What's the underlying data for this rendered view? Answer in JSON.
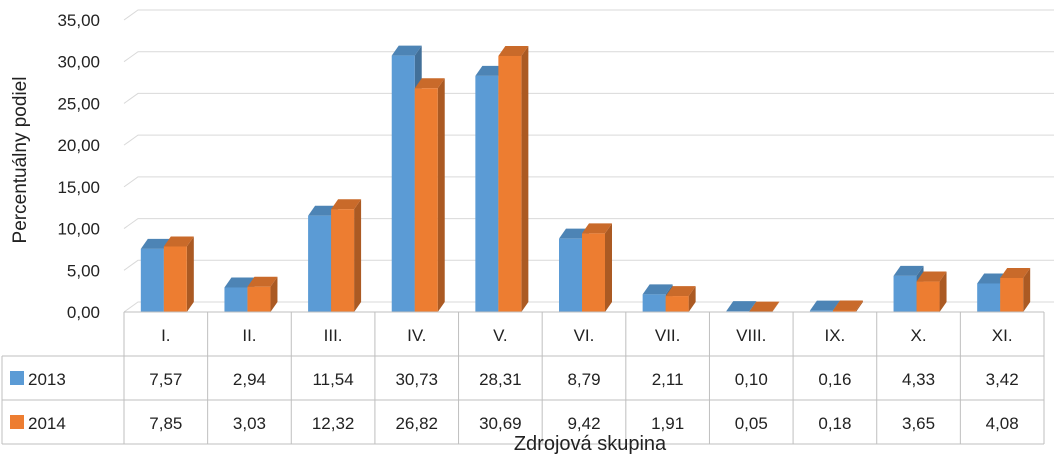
{
  "chart_data": {
    "type": "bar",
    "title": "",
    "xlabel": "Zdrojová skupina",
    "ylabel": "Percentuálny podiel",
    "ylim": [
      0,
      35
    ],
    "y_ticks": [
      "0,00",
      "5,00",
      "10,00",
      "15,00",
      "20,00",
      "25,00",
      "30,00",
      "35,00"
    ],
    "y_tick_values": [
      0,
      5,
      10,
      15,
      20,
      25,
      30,
      35
    ],
    "categories": [
      "I.",
      "II.",
      "III.",
      "IV.",
      "V.",
      "VI.",
      "VII.",
      "VIII.",
      "IX.",
      "X.",
      "XI."
    ],
    "series": [
      {
        "name": "2013",
        "color": "#5b9bd5",
        "values": [
          7.57,
          2.94,
          11.54,
          30.73,
          28.31,
          8.79,
          2.11,
          0.1,
          0.16,
          4.33,
          3.42
        ],
        "labels": [
          "7,57",
          "2,94",
          "11,54",
          "30,73",
          "28,31",
          "8,79",
          "2,11",
          "0,10",
          "0,16",
          "4,33",
          "3,42"
        ]
      },
      {
        "name": "2014",
        "color": "#ed7d31",
        "values": [
          7.85,
          3.03,
          12.32,
          26.82,
          30.69,
          9.42,
          1.91,
          0.05,
          0.18,
          3.65,
          4.08
        ],
        "labels": [
          "7,85",
          "3,03",
          "12,32",
          "26,82",
          "30,69",
          "9,42",
          "1,91",
          "0,05",
          "0,18",
          "3,65",
          "4,08"
        ]
      }
    ],
    "grid": true,
    "legend": "data-table",
    "style": "3d-clustered-column"
  }
}
